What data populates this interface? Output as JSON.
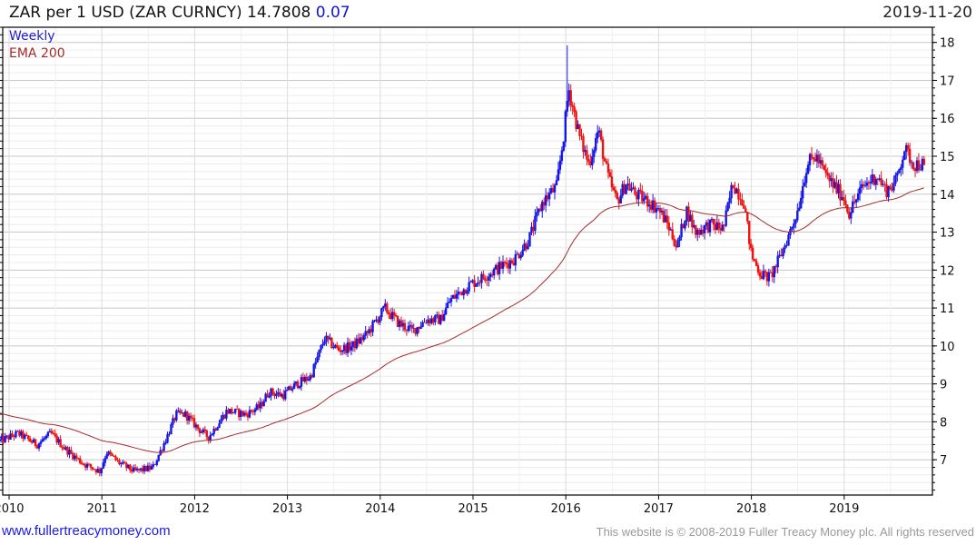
{
  "header": {
    "symbol_title": "ZAR per 1 USD (ZAR CURNCY) 14.7808",
    "change": "0.07",
    "date": "2019-11-20"
  },
  "footer": {
    "site_link": "www.fullertreacymoney.com",
    "copyright": "This website is © 2008-2019 Fuller Treacy Money plc. All rights reserved"
  },
  "chart_data": {
    "type": "candlestick",
    "title": "ZAR per 1 USD (ZAR CURNCY)",
    "last": 14.7808,
    "change": 0.07,
    "legend": [
      "Weekly",
      "EMA 200"
    ],
    "legend_placement": "top-left",
    "colors": {
      "up": "#1515e8",
      "down": "#ee1111",
      "ema": "#a52a2a",
      "title_change": "#1010e0"
    },
    "ylim": [
      6.07,
      18.4
    ],
    "yticks": [
      7,
      8,
      9,
      10,
      11,
      12,
      13,
      14,
      15,
      16,
      17,
      18
    ],
    "xlim": [
      2009.9,
      2019.95
    ],
    "xticks": [
      "2010",
      "2011",
      "2012",
      "2013",
      "2014",
      "2015",
      "2016",
      "2017",
      "2018",
      "2019"
    ],
    "ema_period": 200,
    "ema_start": 8.25,
    "path": [
      [
        2009.9,
        7.5
      ],
      [
        2010.1,
        7.7
      ],
      [
        2010.3,
        7.4
      ],
      [
        2010.45,
        7.7
      ],
      [
        2010.6,
        7.3
      ],
      [
        2010.8,
        6.9
      ],
      [
        2010.98,
        6.7
      ],
      [
        2011.05,
        7.2
      ],
      [
        2011.2,
        6.9
      ],
      [
        2011.35,
        6.7
      ],
      [
        2011.55,
        6.8
      ],
      [
        2011.7,
        7.6
      ],
      [
        2011.8,
        8.2
      ],
      [
        2011.9,
        8.2
      ],
      [
        2012.05,
        7.8
      ],
      [
        2012.15,
        7.6
      ],
      [
        2012.35,
        8.3
      ],
      [
        2012.55,
        8.2
      ],
      [
        2012.7,
        8.4
      ],
      [
        2012.8,
        8.8
      ],
      [
        2012.95,
        8.7
      ],
      [
        2013.1,
        9.0
      ],
      [
        2013.25,
        9.2
      ],
      [
        2013.4,
        10.2
      ],
      [
        2013.55,
        9.9
      ],
      [
        2013.7,
        10.0
      ],
      [
        2013.85,
        10.3
      ],
      [
        2014.05,
        11.0
      ],
      [
        2014.2,
        10.6
      ],
      [
        2014.35,
        10.4
      ],
      [
        2014.5,
        10.7
      ],
      [
        2014.65,
        10.7
      ],
      [
        2014.75,
        11.2
      ],
      [
        2014.95,
        11.6
      ],
      [
        2015.1,
        11.8
      ],
      [
        2015.3,
        12.1
      ],
      [
        2015.45,
        12.3
      ],
      [
        2015.6,
        12.8
      ],
      [
        2015.75,
        13.8
      ],
      [
        2015.9,
        14.2
      ],
      [
        2015.98,
        15.6
      ],
      [
        2016.03,
        16.8
      ],
      [
        2016.15,
        15.5
      ],
      [
        2016.25,
        14.8
      ],
      [
        2016.35,
        15.7
      ],
      [
        2016.45,
        14.5
      ],
      [
        2016.55,
        13.8
      ],
      [
        2016.65,
        14.3
      ],
      [
        2016.75,
        14.0
      ],
      [
        2016.9,
        13.8
      ],
      [
        2017.0,
        13.6
      ],
      [
        2017.1,
        13.2
      ],
      [
        2017.2,
        12.6
      ],
      [
        2017.3,
        13.6
      ],
      [
        2017.4,
        13.0
      ],
      [
        2017.55,
        13.2
      ],
      [
        2017.7,
        13.1
      ],
      [
        2017.8,
        14.3
      ],
      [
        2017.92,
        13.8
      ],
      [
        2018.0,
        12.4
      ],
      [
        2018.1,
        11.9
      ],
      [
        2018.2,
        11.8
      ],
      [
        2018.3,
        12.3
      ],
      [
        2018.4,
        12.9
      ],
      [
        2018.5,
        13.6
      ],
      [
        2018.6,
        14.8
      ],
      [
        2018.7,
        15.0
      ],
      [
        2018.8,
        14.5
      ],
      [
        2018.9,
        14.2
      ],
      [
        2019.0,
        13.9
      ],
      [
        2019.05,
        13.5
      ],
      [
        2019.2,
        14.2
      ],
      [
        2019.35,
        14.5
      ],
      [
        2019.45,
        14.1
      ],
      [
        2019.55,
        14.3
      ],
      [
        2019.65,
        15.2
      ],
      [
        2019.75,
        14.8
      ],
      [
        2019.88,
        14.78
      ]
    ],
    "spikes": [
      [
        2016.02,
        17.92
      ]
    ]
  }
}
